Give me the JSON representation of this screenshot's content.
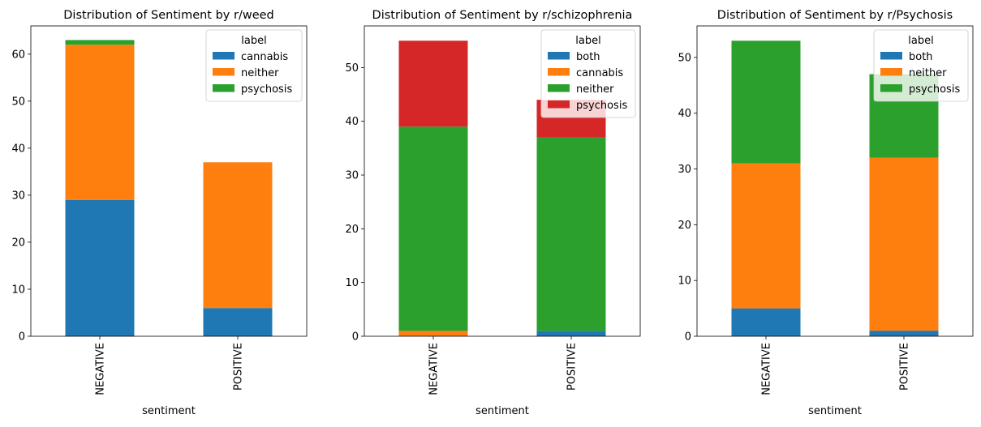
{
  "chart_data": [
    {
      "type": "bar",
      "stacked": true,
      "title": "Distribution of Sentiment by r/weed",
      "xlabel": "sentiment",
      "ylabel": "",
      "categories": [
        "NEGATIVE",
        "POSITIVE"
      ],
      "ylim": [
        0,
        66
      ],
      "yticks": [
        0,
        10,
        20,
        30,
        40,
        50,
        60
      ],
      "legend": {
        "title": "label",
        "placement": "top-right"
      },
      "series": [
        {
          "name": "cannabis",
          "color": "#1f77b4",
          "values": [
            29,
            6
          ]
        },
        {
          "name": "neither",
          "color": "#ff7f0e",
          "values": [
            33,
            31
          ]
        },
        {
          "name": "psychosis",
          "color": "#2ca02c",
          "values": [
            1,
            0
          ]
        }
      ],
      "grid": false
    },
    {
      "type": "bar",
      "stacked": true,
      "title": "Distribution of Sentiment by r/schizophrenia",
      "xlabel": "sentiment",
      "ylabel": "",
      "categories": [
        "NEGATIVE",
        "POSITIVE"
      ],
      "ylim": [
        0,
        57.75
      ],
      "yticks": [
        0,
        10,
        20,
        30,
        40,
        50
      ],
      "legend": {
        "title": "label",
        "placement": "top-right"
      },
      "series": [
        {
          "name": "both",
          "color": "#1f77b4",
          "values": [
            0,
            1
          ]
        },
        {
          "name": "cannabis",
          "color": "#ff7f0e",
          "values": [
            1,
            0
          ]
        },
        {
          "name": "neither",
          "color": "#2ca02c",
          "values": [
            38,
            36
          ]
        },
        {
          "name": "psychosis",
          "color": "#d62728",
          "values": [
            16,
            7
          ]
        }
      ],
      "grid": false
    },
    {
      "type": "bar",
      "stacked": true,
      "title": "Distribution of Sentiment by r/Psychosis",
      "xlabel": "sentiment",
      "ylabel": "",
      "categories": [
        "NEGATIVE",
        "POSITIVE"
      ],
      "ylim": [
        0,
        55.65
      ],
      "yticks": [
        0,
        10,
        20,
        30,
        40,
        50
      ],
      "legend": {
        "title": "label",
        "placement": "top-right"
      },
      "series": [
        {
          "name": "both",
          "color": "#1f77b4",
          "values": [
            5,
            1
          ]
        },
        {
          "name": "neither",
          "color": "#ff7f0e",
          "values": [
            26,
            31
          ]
        },
        {
          "name": "psychosis",
          "color": "#2ca02c",
          "values": [
            22,
            15
          ]
        }
      ],
      "grid": false
    }
  ]
}
